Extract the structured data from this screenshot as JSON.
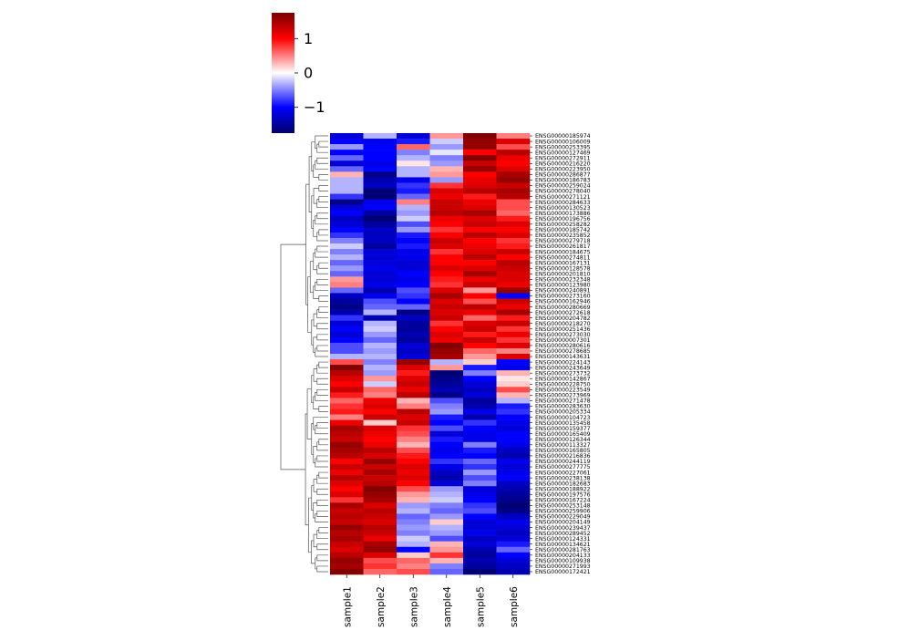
{
  "chart_data": {
    "type": "heatmap",
    "title": "",
    "xlabel": "",
    "ylabel": "",
    "columns": [
      "sample1",
      "sample2",
      "sample3",
      "sample4",
      "sample5",
      "sample6"
    ],
    "colorbar": {
      "min": -1.75,
      "max": 1.75,
      "ticks": [
        {
          "value": 1,
          "label": "1"
        },
        {
          "value": 0,
          "label": "0"
        },
        {
          "value": -1,
          "label": "−1"
        }
      ],
      "colors": {
        "low": "#00006a",
        "mid_low": "#0000ff",
        "mid": "#ffffff",
        "mid_high": "#ff0000",
        "high": "#7a0000"
      }
    },
    "rows": [
      {
        "label": "ENSG00000185974",
        "values": [
          -1.2,
          -0.3,
          -1.2,
          0.4,
          1.7,
          0.5
        ]
      },
      {
        "label": "ENSG00000106009",
        "values": [
          -1.0,
          -1.1,
          -0.9,
          -0.2,
          1.6,
          1.2
        ]
      },
      {
        "label": "ENSG00000253395",
        "values": [
          -0.4,
          -1.0,
          0.6,
          -0.4,
          1.6,
          0.7
        ]
      },
      {
        "label": "ENSG00000127469",
        "values": [
          -1.0,
          -1.0,
          -0.5,
          -0.1,
          1.0,
          1.4
        ]
      },
      {
        "label": "ENSG00000272911",
        "values": [
          -0.6,
          -1.0,
          -0.3,
          -0.5,
          1.7,
          1.1
        ]
      },
      {
        "label": "ENSG00000216220",
        "values": [
          -1.2,
          -1.1,
          0.1,
          -0.4,
          1.3,
          1.0
        ]
      },
      {
        "label": "ENSG00000223950",
        "values": [
          -0.6,
          -1.0,
          -0.3,
          0.3,
          1.6,
          1.2
        ]
      },
      {
        "label": "ENSG00000286877",
        "values": [
          0.3,
          -1.6,
          -0.3,
          0.4,
          1.0,
          1.5
        ]
      },
      {
        "label": "ENSG00000186783",
        "values": [
          -0.3,
          -1.4,
          -1.1,
          -0.4,
          1.1,
          1.6
        ]
      },
      {
        "label": "ENSG00000259024",
        "values": [
          -0.3,
          -1.3,
          -0.8,
          0.8,
          1.2,
          1.3
        ]
      },
      {
        "label": "ENSG00000278040",
        "values": [
          -0.3,
          -1.7,
          -0.9,
          1.2,
          1.4,
          1.5
        ]
      },
      {
        "label": "ENSG00000271121",
        "values": [
          -0.8,
          -1.7,
          -0.6,
          1.1,
          0.9,
          1.4
        ]
      },
      {
        "label": "ENSG00000284633",
        "values": [
          -1.6,
          -1.1,
          0.5,
          1.3,
          1.1,
          0.7
        ]
      },
      {
        "label": "ENSG00000130523",
        "values": [
          -1.2,
          -1.0,
          -0.3,
          1.3,
          1.2,
          0.7
        ]
      },
      {
        "label": "ENSG00000173886",
        "values": [
          -1.0,
          -1.5,
          -0.4,
          1.4,
          1.5,
          0.6
        ]
      },
      {
        "label": "ENSG00000196756",
        "values": [
          -1.3,
          -1.7,
          -0.2,
          1.1,
          1.2,
          0.9
        ]
      },
      {
        "label": "ENSG00000258282",
        "values": [
          -1.2,
          -1.5,
          -0.7,
          1.0,
          1.3,
          1.2
        ]
      },
      {
        "label": "ENSG00000185742",
        "values": [
          -1.0,
          -1.3,
          -0.4,
          0.8,
          1.0,
          1.0
        ]
      },
      {
        "label": "ENSG00000235852",
        "values": [
          -0.8,
          -1.3,
          -0.9,
          1.0,
          1.4,
          1.2
        ]
      },
      {
        "label": "ENSG00000279718",
        "values": [
          -0.5,
          -1.3,
          -1.0,
          1.3,
          1.0,
          0.8
        ]
      },
      {
        "label": "ENSG00000261817",
        "values": [
          -0.2,
          -1.5,
          -0.9,
          1.2,
          1.1,
          0.9
        ]
      },
      {
        "label": "ENSG00000184675",
        "values": [
          -0.5,
          -1.2,
          -1.1,
          0.8,
          1.2,
          1.3
        ]
      },
      {
        "label": "ENSG00000274811",
        "values": [
          -0.3,
          -1.2,
          -1.1,
          1.0,
          1.4,
          1.0
        ]
      },
      {
        "label": "ENSG00000167131",
        "values": [
          -0.6,
          -1.2,
          -1.2,
          1.0,
          1.0,
          1.4
        ]
      },
      {
        "label": "ENSG00000128578",
        "values": [
          -0.4,
          -1.1,
          -1.2,
          1.2,
          1.2,
          1.3
        ]
      },
      {
        "label": "ENSG00000201810",
        "values": [
          -0.6,
          -1.2,
          -1.0,
          1.0,
          1.5,
          1.2
        ]
      },
      {
        "label": "ENSG00000232348",
        "values": [
          0.4,
          -1.2,
          -1.1,
          0.9,
          1.1,
          1.2
        ]
      },
      {
        "label": "ENSG00000123980",
        "values": [
          0.5,
          -1.1,
          -1.0,
          0.8,
          1.3,
          1.1
        ]
      },
      {
        "label": "ENSG00000240891",
        "values": [
          -0.6,
          -1.4,
          -0.7,
          1.2,
          0.4,
          1.6
        ]
      },
      {
        "label": "ENSG00000273160",
        "values": [
          -1.3,
          -1.1,
          -0.8,
          1.5,
          1.0,
          -1.0
        ]
      },
      {
        "label": "ENSG00000162946",
        "values": [
          -1.5,
          -0.7,
          -1.0,
          1.2,
          0.7,
          1.3
        ]
      },
      {
        "label": "ENSG00000280669",
        "values": [
          -1.6,
          -0.6,
          -0.6,
          1.3,
          1.4,
          1.1
        ]
      },
      {
        "label": "ENSG00000272618",
        "values": [
          -1.4,
          -0.3,
          -1.6,
          1.2,
          1.1,
          1.5
        ]
      },
      {
        "label": "ENSG00000204782",
        "values": [
          -0.8,
          -1.4,
          -1.3,
          1.3,
          0.6,
          0.9
        ]
      },
      {
        "label": "ENSG00000218270",
        "values": [
          -1.2,
          -0.3,
          -1.5,
          0.8,
          1.2,
          1.3
        ]
      },
      {
        "label": "ENSG00000251436",
        "values": [
          -1.0,
          -0.2,
          -1.5,
          1.0,
          1.3,
          0.8
        ]
      },
      {
        "label": "ENSG00000273030",
        "values": [
          -1.2,
          -0.4,
          -1.4,
          1.2,
          0.9,
          1.1
        ]
      },
      {
        "label": "ENSG00000007301",
        "values": [
          -1.0,
          -0.6,
          -1.5,
          1.1,
          1.3,
          0.8
        ]
      },
      {
        "label": "ENSG00000280616",
        "values": [
          -0.7,
          -0.3,
          -1.2,
          1.7,
          1.0,
          1.2
        ]
      },
      {
        "label": "ENSG00000278685",
        "values": [
          -0.7,
          -0.4,
          -1.3,
          1.6,
          0.6,
          0.5
        ]
      },
      {
        "label": "ENSG00000143631",
        "values": [
          -0.3,
          -0.3,
          -1.2,
          1.5,
          0.4,
          1.2
        ]
      },
      {
        "label": "ENSG00000224143",
        "values": [
          0.7,
          -0.5,
          1.6,
          -0.3,
          0.2,
          -1.0
        ]
      },
      {
        "label": "ENSG00000243649",
        "values": [
          1.7,
          -0.3,
          1.2,
          0.4,
          -0.9,
          -1.1
        ]
      },
      {
        "label": "ENSG00000273732",
        "values": [
          1.4,
          -0.4,
          0.9,
          -1.7,
          -0.5,
          0.3
        ]
      },
      {
        "label": "ENSG00000142867",
        "values": [
          1.2,
          0.4,
          1.2,
          -1.6,
          -1.0,
          0.1
        ]
      },
      {
        "label": "ENSG00000228750",
        "values": [
          1.0,
          -0.2,
          1.3,
          -1.5,
          -1.2,
          0.2
        ]
      },
      {
        "label": "ENSG00000223549",
        "values": [
          1.3,
          0.6,
          1.1,
          -1.4,
          -1.3,
          0.7
        ]
      },
      {
        "label": "ENSG00000273969",
        "values": [
          0.9,
          0.5,
          1.4,
          -1.6,
          -1.2,
          0.3
        ]
      },
      {
        "label": "ENSG00000271478",
        "values": [
          0.6,
          1.1,
          0.3,
          -0.7,
          -1.5,
          -0.3
        ]
      },
      {
        "label": "ENSG00000283630",
        "values": [
          0.8,
          1.2,
          0.5,
          -0.5,
          -1.4,
          -0.9
        ]
      },
      {
        "label": "ENSG00000205334",
        "values": [
          0.9,
          1.0,
          1.4,
          -0.4,
          -1.1,
          -0.8
        ]
      },
      {
        "label": "ENSG00000104723",
        "values": [
          0.5,
          1.3,
          1.2,
          -0.9,
          -1.4,
          -1.0
        ]
      },
      {
        "label": "ENSG00000135458",
        "values": [
          1.1,
          0.2,
          1.3,
          -1.0,
          -0.8,
          -1.1
        ]
      },
      {
        "label": "ENSG00000159377",
        "values": [
          1.5,
          1.2,
          0.8,
          -0.7,
          -1.0,
          -1.2
        ]
      },
      {
        "label": "ENSG00000165409",
        "values": [
          1.4,
          1.1,
          0.7,
          -1.2,
          -1.1,
          -1.0
        ]
      },
      {
        "label": "ENSG00000126344",
        "values": [
          1.3,
          1.0,
          0.5,
          -0.9,
          -1.1,
          -1.0
        ]
      },
      {
        "label": "ENSG00000113327",
        "values": [
          1.6,
          1.1,
          0.3,
          -1.0,
          -0.5,
          -1.1
        ]
      },
      {
        "label": "ENSG00000165805",
        "values": [
          1.5,
          1.4,
          0.7,
          -1.1,
          -0.9,
          -1.3
        ]
      },
      {
        "label": "ENSG00000216836",
        "values": [
          1.4,
          1.2,
          0.9,
          -1.0,
          -1.0,
          -1.4
        ]
      },
      {
        "label": "ENSG00000244119",
        "values": [
          1.0,
          1.6,
          1.0,
          -0.8,
          -0.6,
          -1.1
        ]
      },
      {
        "label": "ENSG00000277775",
        "values": [
          1.3,
          1.3,
          1.2,
          -1.1,
          -0.8,
          -1.2
        ]
      },
      {
        "label": "ENSG00000227061",
        "values": [
          1.1,
          1.5,
          1.1,
          -1.3,
          -0.4,
          -1.1
        ]
      },
      {
        "label": "ENSG00000238138",
        "values": [
          1.4,
          1.3,
          1.2,
          -1.4,
          -0.7,
          -1.0
        ]
      },
      {
        "label": "ENSG00000182683",
        "values": [
          1.2,
          1.4,
          1.0,
          -1.2,
          -0.5,
          -1.3
        ]
      },
      {
        "label": "ENSG00000188922",
        "values": [
          1.0,
          1.7,
          0.7,
          -0.4,
          -1.2,
          -1.4
        ]
      },
      {
        "label": "ENSG00000197576",
        "values": [
          1.2,
          1.6,
          0.4,
          -0.3,
          -1.1,
          -1.5
        ]
      },
      {
        "label": "ENSG00000167224",
        "values": [
          0.8,
          1.5,
          0.3,
          -0.2,
          -1.0,
          -1.6
        ]
      },
      {
        "label": "ENSG00000253148",
        "values": [
          1.5,
          1.2,
          -0.4,
          -0.5,
          -0.8,
          -1.7
        ]
      },
      {
        "label": "ENSG00000259906",
        "values": [
          1.3,
          1.4,
          -0.3,
          -0.6,
          -0.7,
          -1.6
        ]
      },
      {
        "label": "ENSG00000229049",
        "values": [
          1.4,
          1.3,
          -0.6,
          -0.4,
          -1.0,
          -1.3
        ]
      },
      {
        "label": "ENSG00000204149",
        "values": [
          1.3,
          1.2,
          -0.5,
          0.2,
          -1.2,
          -1.1
        ]
      },
      {
        "label": "ENSG00000239437",
        "values": [
          1.6,
          1.4,
          -0.4,
          -0.3,
          -1.2,
          -1.2
        ]
      },
      {
        "label": "ENSG00000289452",
        "values": [
          1.4,
          1.3,
          -0.5,
          -0.4,
          -1.1,
          -1.3
        ]
      },
      {
        "label": "ENSG00000124331",
        "values": [
          1.5,
          1.1,
          -0.2,
          -0.7,
          -1.3,
          -1.2
        ]
      },
      {
        "label": "ENSG00000134621",
        "values": [
          1.3,
          1.5,
          -0.3,
          0.3,
          -1.2,
          -0.9
        ]
      },
      {
        "label": "ENSG00000281763",
        "values": [
          1.2,
          1.6,
          -1.0,
          0.4,
          -1.4,
          -0.6
        ]
      },
      {
        "label": "ENSG00000204133",
        "values": [
          1.4,
          1.2,
          0.2,
          0.8,
          -1.5,
          -1.0
        ]
      },
      {
        "label": "ENSG00000109938",
        "values": [
          1.6,
          0.7,
          0.6,
          0.3,
          -1.4,
          -1.2
        ]
      },
      {
        "label": "ENSG00000271993",
        "values": [
          1.5,
          0.8,
          0.5,
          -0.5,
          -1.5,
          -1.3
        ]
      },
      {
        "label": "ENSG00000172421",
        "values": [
          1.7,
          0.6,
          0.7,
          -0.6,
          -1.7,
          -1.4
        ]
      }
    ]
  }
}
